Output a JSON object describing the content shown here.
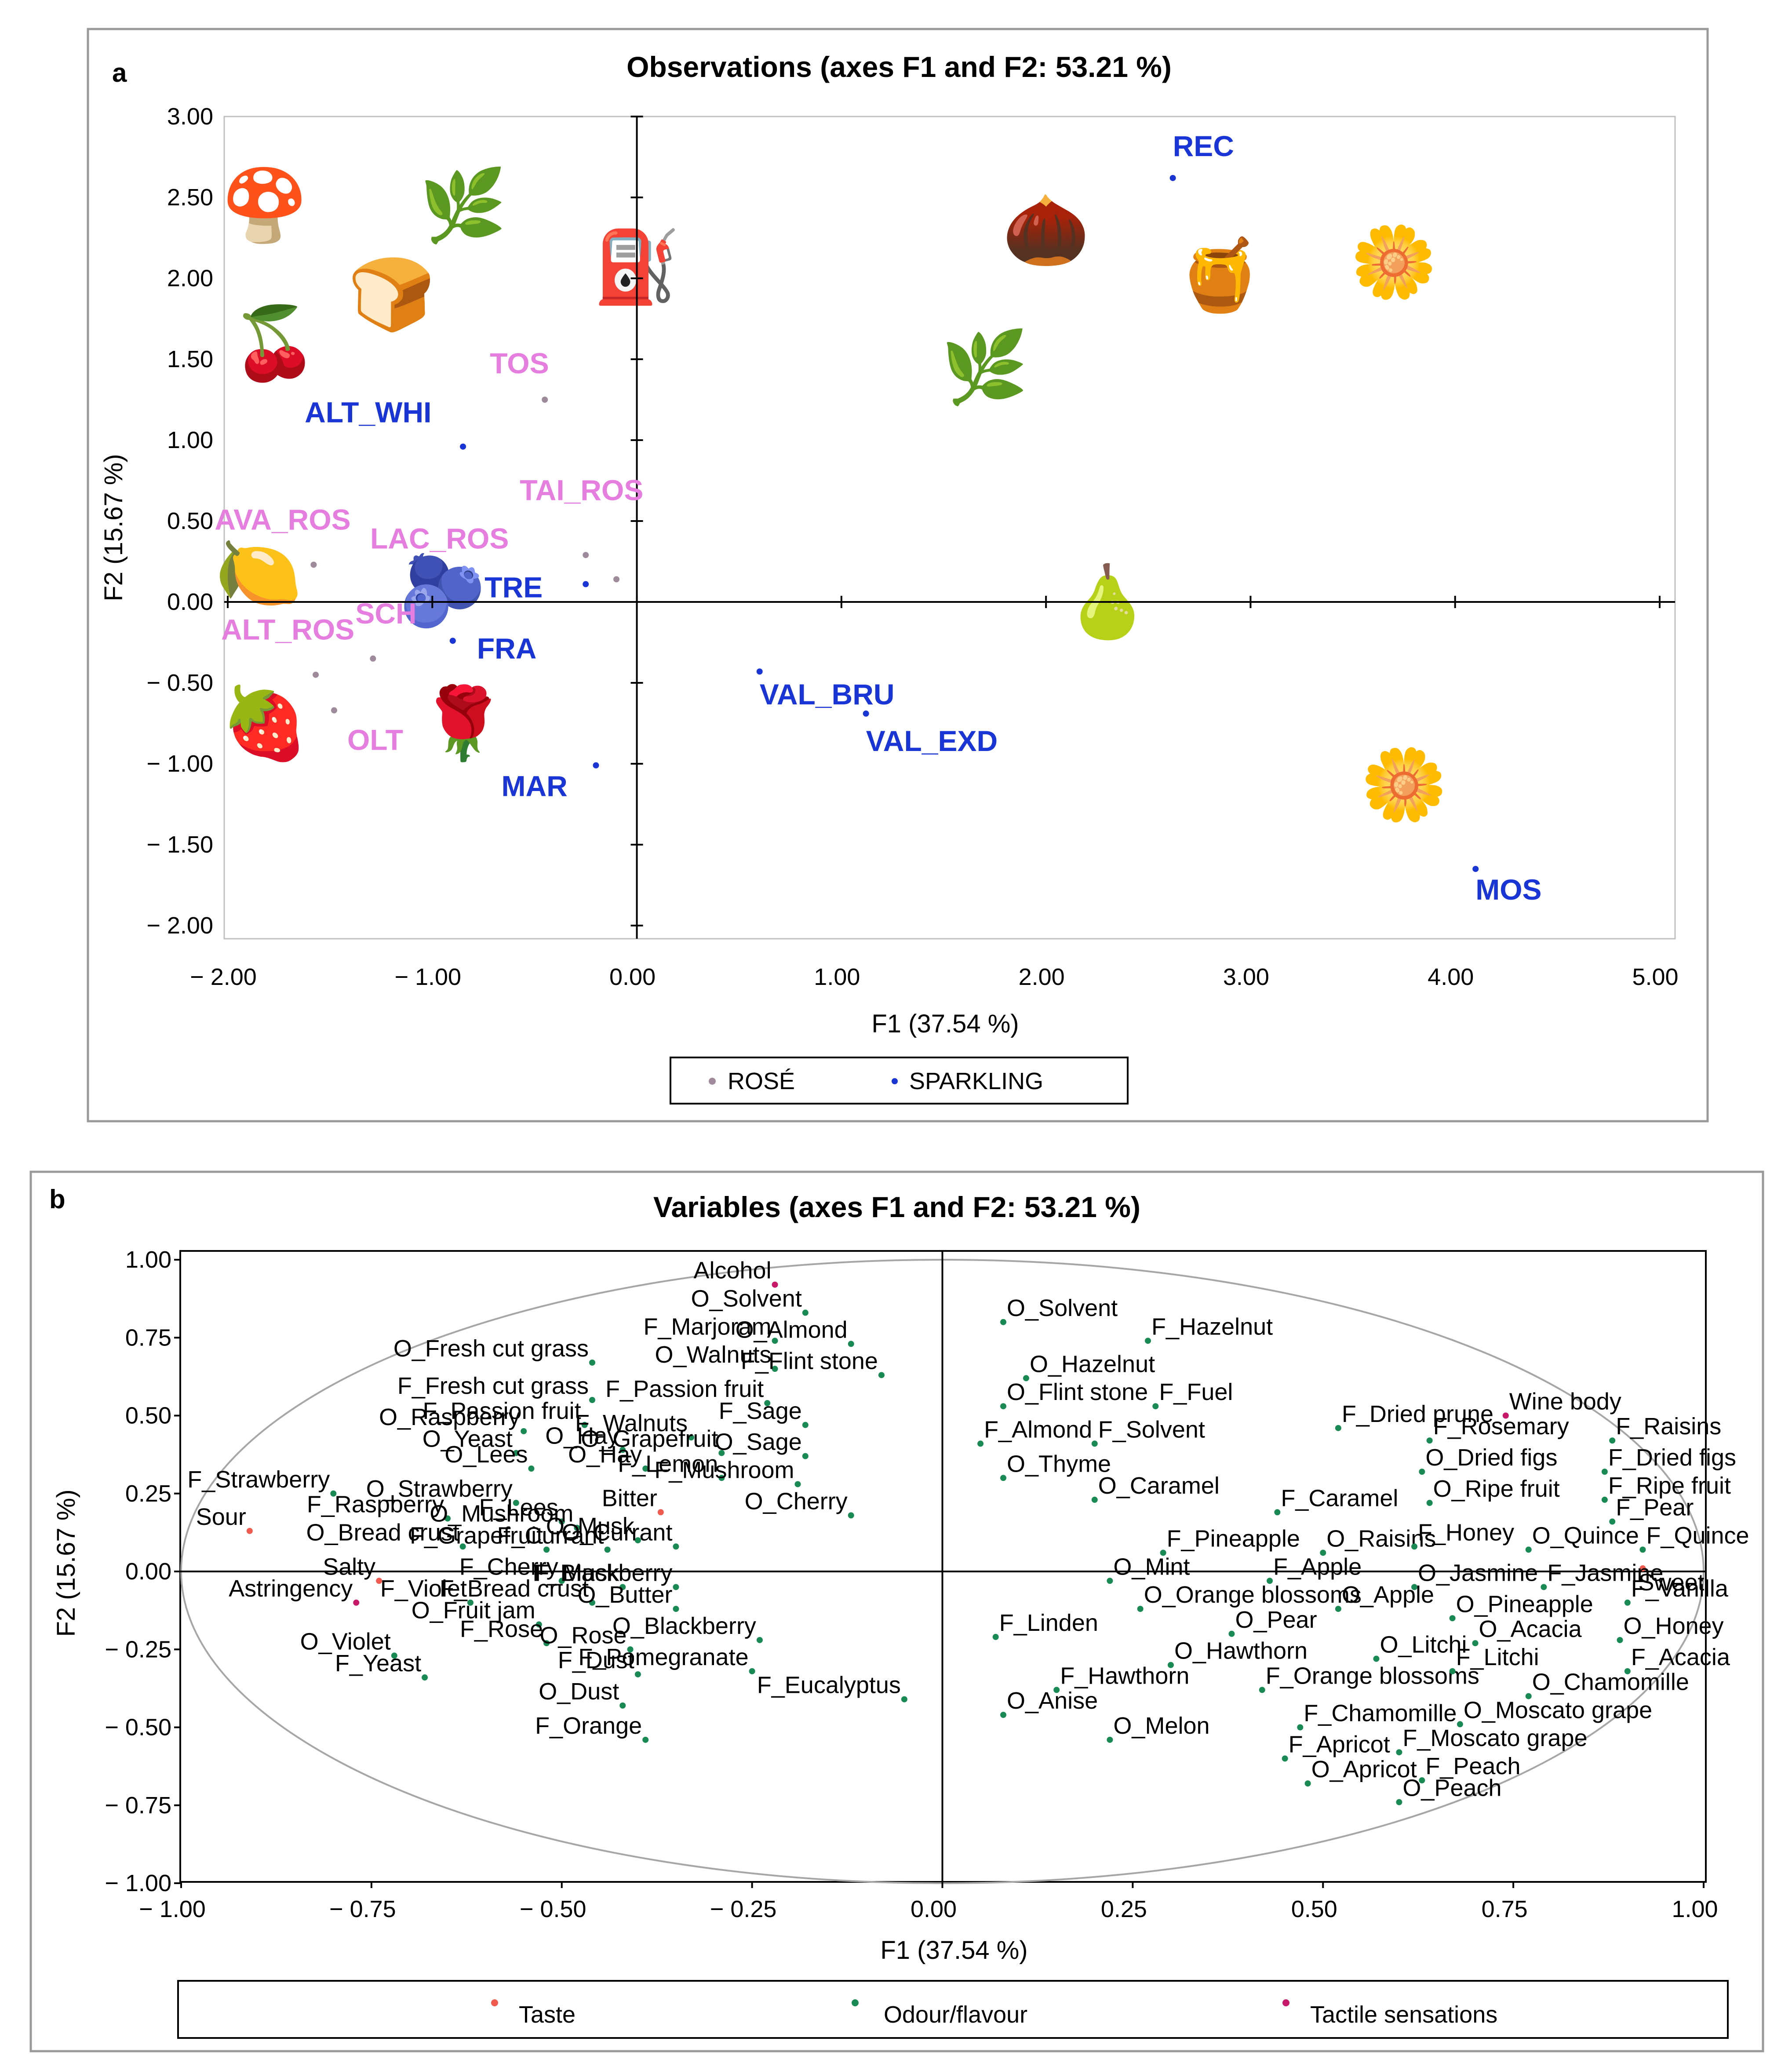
{
  "chart_data": [
    {
      "panel": "a",
      "type": "scatter",
      "title": "Observations (axes F1 and F2: 53.21 %)",
      "xlabel": "F1 (37.54 %)",
      "ylabel": "F2 (15.67 %)",
      "xlim": [
        -2,
        5
      ],
      "ylim": [
        -2,
        3
      ],
      "x_ticks": [
        "− 2.00",
        "− 1.00",
        "0.00",
        "1.00",
        "2.00",
        "3.00",
        "4.00",
        "5.00"
      ],
      "x_tick_values": [
        -2,
        -1,
        0,
        1,
        2,
        3,
        4,
        5
      ],
      "y_ticks": [
        "3.00",
        "2.50",
        "2.00",
        "1.50",
        "1.00",
        "0.50",
        "0.00",
        "− 0.50",
        "− 1.00",
        "− 1.50",
        "− 2.00"
      ],
      "y_tick_values": [
        3,
        2.5,
        2,
        1.5,
        1,
        0.5,
        0,
        -0.5,
        -1,
        -1.5,
        -2
      ],
      "colors": {
        "rose": "#e67ee0",
        "sparkling": "#1a35d6",
        "rose_marker": "#9e8a9a",
        "sparkling_marker": "#1a35d6"
      },
      "legend": [
        {
          "label": "ROSÉ",
          "group": "rose"
        },
        {
          "label": "SPARKLING",
          "group": "sparkling"
        }
      ],
      "series": [
        {
          "name": "ROSÉ",
          "points": [
            {
              "label": "TOS",
              "x": -0.45,
              "y": 1.25
            },
            {
              "label": "TAI_ROS",
              "x": -0.25,
              "y": 0.29
            },
            {
              "label": "AVA_ROS",
              "x": -1.58,
              "y": 0.23
            },
            {
              "label": "LAC_ROS",
              "x": -0.1,
              "y": 0.14
            },
            {
              "label": "ALT_ROS",
              "x": -1.57,
              "y": -0.45
            },
            {
              "label": "SCH",
              "x": -1.29,
              "y": -0.35
            },
            {
              "label": "OLT",
              "x": -1.48,
              "y": -0.67
            }
          ]
        },
        {
          "name": "SPARKLING",
          "points": [
            {
              "label": "REC",
              "x": 2.62,
              "y": 2.62
            },
            {
              "label": "ALT_WHI",
              "x": -0.85,
              "y": 0.96
            },
            {
              "label": "TRE",
              "x": -0.25,
              "y": 0.11
            },
            {
              "label": "FRA",
              "x": -0.9,
              "y": -0.24
            },
            {
              "label": "VAL_BRU",
              "x": 0.6,
              "y": -0.43
            },
            {
              "label": "VAL_EXD",
              "x": 1.12,
              "y": -0.69
            },
            {
              "label": "MAR",
              "x": -0.2,
              "y": -1.01
            },
            {
              "label": "MOS",
              "x": 4.1,
              "y": -1.65
            }
          ]
        }
      ],
      "icons": [
        {
          "name": "mushroom-icon",
          "glyph": "🍄",
          "x": -1.82,
          "y": 2.45
        },
        {
          "name": "leaf-icon",
          "glyph": "🌿",
          "x": -0.85,
          "y": 2.45
        },
        {
          "name": "fuel-pump-icon",
          "glyph": "⛽",
          "x": 0.0,
          "y": 2.07
        },
        {
          "name": "bread-icon",
          "glyph": "🍞",
          "x": -1.2,
          "y": 1.9
        },
        {
          "name": "cherries-icon",
          "glyph": "🍒",
          "x": -1.77,
          "y": 1.6
        },
        {
          "name": "almond-icon",
          "glyph": "🌰",
          "x": 2.0,
          "y": 2.3
        },
        {
          "name": "honey-pot-icon",
          "glyph": "🍯",
          "x": 2.85,
          "y": 2.02
        },
        {
          "name": "vanilla-flower-icon",
          "glyph": "🌼",
          "x": 3.7,
          "y": 2.1
        },
        {
          "name": "herb-leaf-icon",
          "glyph": "🌿",
          "x": 1.7,
          "y": 1.45
        },
        {
          "name": "lemon-icon",
          "glyph": "🍋",
          "x": -1.85,
          "y": 0.18
        },
        {
          "name": "blueberries-icon",
          "glyph": "🫐",
          "x": -0.95,
          "y": 0.07
        },
        {
          "name": "pear-icon",
          "glyph": "🍐",
          "x": 2.3,
          "y": 0.0
        },
        {
          "name": "jam-jar-icon",
          "glyph": "🍓",
          "x": -1.82,
          "y": -0.75
        },
        {
          "name": "rose-icon",
          "glyph": "🌹",
          "x": -0.85,
          "y": -0.75
        },
        {
          "name": "daisy-icon",
          "glyph": "🌼",
          "x": 3.75,
          "y": -1.13
        }
      ]
    },
    {
      "panel": "b",
      "type": "scatter",
      "title": "Variables (axes F1 and F2: 53.21 %)",
      "xlabel": "F1 (37.54 %)",
      "ylabel": "F2 (15.67 %)",
      "xlim": [
        -1,
        1
      ],
      "ylim": [
        -1,
        1
      ],
      "x_ticks": [
        "− 1.00",
        "− 0.75",
        "− 0.50",
        "− 0.25",
        "0.00",
        "0.25",
        "0.50",
        "0.75",
        "1.00"
      ],
      "x_tick_values": [
        -1,
        -0.75,
        -0.5,
        -0.25,
        0,
        0.25,
        0.5,
        0.75,
        1
      ],
      "y_ticks": [
        "1.00",
        "0.75",
        "0.50",
        "0.25",
        "0.00",
        "− 0.25",
        "− 0.50",
        "− 0.75",
        "− 1.00"
      ],
      "y_tick_values": [
        1,
        0.75,
        0.5,
        0.25,
        0,
        -0.25,
        -0.5,
        -0.75,
        -1
      ],
      "colors": {
        "taste": "#f05a4f",
        "odour": "#1a8a55",
        "tactile": "#c8186a",
        "text": "#000000"
      },
      "legend": [
        {
          "label": "Taste",
          "group": "taste"
        },
        {
          "label": "Odour/flavour",
          "group": "odour"
        },
        {
          "label": "Tactile sensations",
          "group": "tactile"
        }
      ],
      "series": [
        {
          "name": "Taste",
          "points": [
            {
              "label": "Sour",
              "x": -0.91,
              "y": 0.13
            },
            {
              "label": "Salty",
              "x": -0.74,
              "y": -0.03
            },
            {
              "label": "Bitter",
              "x": -0.37,
              "y": 0.19
            },
            {
              "label": "Sweet",
              "x": 0.92,
              "y": 0.01
            }
          ]
        },
        {
          "name": "Tactile sensations",
          "points": [
            {
              "label": "Alcohol",
              "x": -0.22,
              "y": 0.92
            },
            {
              "label": "Wine body",
              "x": 0.74,
              "y": 0.5
            },
            {
              "label": "Astringency",
              "x": -0.77,
              "y": -0.1
            }
          ]
        },
        {
          "name": "Odour/flavour",
          "points": [
            {
              "label": "O_Solvent",
              "x": -0.18,
              "y": 0.83
            },
            {
              "label": "F_Marjoram",
              "x": -0.22,
              "y": 0.74
            },
            {
              "label": "O_Almond",
              "x": -0.12,
              "y": 0.73
            },
            {
              "label": "O_Fresh cut grass",
              "x": -0.46,
              "y": 0.67
            },
            {
              "label": "O_Walnuts",
              "x": -0.22,
              "y": 0.65
            },
            {
              "label": "F_Flint stone",
              "x": -0.08,
              "y": 0.63
            },
            {
              "label": "F_Fresh cut grass",
              "x": -0.46,
              "y": 0.55
            },
            {
              "label": "F_Passion fruit",
              "x": -0.23,
              "y": 0.54
            },
            {
              "label": "F_Sage",
              "x": -0.18,
              "y": 0.47
            },
            {
              "label": "O_Raspberry",
              "x": -0.55,
              "y": 0.45
            },
            {
              "label": "F_Passion fruit",
              "x": -0.47,
              "y": 0.47
            },
            {
              "label": "F_Walnuts",
              "x": -0.33,
              "y": 0.43
            },
            {
              "label": "O_Sage",
              "x": -0.18,
              "y": 0.37
            },
            {
              "label": "O_Yeast",
              "x": -0.56,
              "y": 0.38
            },
            {
              "label": "O_Lees",
              "x": -0.54,
              "y": 0.33
            },
            {
              "label": "O_Hay",
              "x": -0.42,
              "y": 0.39
            },
            {
              "label": "O_Hay",
              "x": -0.39,
              "y": 0.33
            },
            {
              "label": "O_Grapefruit",
              "x": -0.29,
              "y": 0.38
            },
            {
              "label": "F_Strawberry",
              "x": -0.8,
              "y": 0.25
            },
            {
              "label": "O_Strawberry",
              "x": -0.56,
              "y": 0.22
            },
            {
              "label": "F_Lemon",
              "x": -0.29,
              "y": 0.3
            },
            {
              "label": "F_Mushroom",
              "x": -0.19,
              "y": 0.28
            },
            {
              "label": "F_Raspberry",
              "x": -0.65,
              "y": 0.17
            },
            {
              "label": "F_Lees",
              "x": -0.5,
              "y": 0.16
            },
            {
              "label": "O_Mushroom",
              "x": -0.48,
              "y": 0.14
            },
            {
              "label": "O_Musk",
              "x": -0.4,
              "y": 0.1
            },
            {
              "label": "O_Cherry",
              "x": -0.12,
              "y": 0.18
            },
            {
              "label": "O_Bread crust",
              "x": -0.63,
              "y": 0.08
            },
            {
              "label": "F_Grapefruit",
              "x": -0.52,
              "y": 0.07
            },
            {
              "label": "F_Currant",
              "x": -0.44,
              "y": 0.07
            },
            {
              "label": "O_Currant",
              "x": -0.35,
              "y": 0.08
            },
            {
              "label": "F_Cherry",
              "x": -0.5,
              "y": -0.03
            },
            {
              "label": "F_Musk",
              "x": -0.42,
              "y": -0.05
            },
            {
              "label": "F_Blackberry",
              "x": -0.35,
              "y": -0.05
            },
            {
              "label": "F_Violet",
              "x": -0.62,
              "y": -0.1
            },
            {
              "label": "F_Bread crust",
              "x": -0.46,
              "y": -0.1
            },
            {
              "label": "O_Butter",
              "x": -0.35,
              "y": -0.12
            },
            {
              "label": "O_Fruit jam",
              "x": -0.53,
              "y": -0.17
            },
            {
              "label": "O_Violet",
              "x": -0.72,
              "y": -0.27
            },
            {
              "label": "F_Rose",
              "x": -0.52,
              "y": -0.23
            },
            {
              "label": "O_Rose",
              "x": -0.41,
              "y": -0.25
            },
            {
              "label": "O_Blackberry",
              "x": -0.24,
              "y": -0.22
            },
            {
              "label": "F_Yeast",
              "x": -0.68,
              "y": -0.34
            },
            {
              "label": "F_Dust",
              "x": -0.4,
              "y": -0.33
            },
            {
              "label": "F_Pomegranate",
              "x": -0.25,
              "y": -0.32
            },
            {
              "label": "O_Dust",
              "x": -0.42,
              "y": -0.43
            },
            {
              "label": "F_Eucalyptus",
              "x": -0.05,
              "y": -0.41
            },
            {
              "label": "F_Orange",
              "x": -0.39,
              "y": -0.54
            },
            {
              "label": "O_Solvent",
              "x": 0.08,
              "y": 0.8
            },
            {
              "label": "F_Hazelnut",
              "x": 0.27,
              "y": 0.74
            },
            {
              "label": "O_Hazelnut",
              "x": 0.11,
              "y": 0.62
            },
            {
              "label": "F_Fuel",
              "x": 0.28,
              "y": 0.53
            },
            {
              "label": "O_Flint stone",
              "x": 0.08,
              "y": 0.53
            },
            {
              "label": "F_Dried prune",
              "x": 0.52,
              "y": 0.46
            },
            {
              "label": "F_Almond",
              "x": 0.05,
              "y": 0.41
            },
            {
              "label": "F_Solvent",
              "x": 0.2,
              "y": 0.41
            },
            {
              "label": "O_Thyme",
              "x": 0.08,
              "y": 0.3
            },
            {
              "label": "O_Caramel",
              "x": 0.2,
              "y": 0.23
            },
            {
              "label": "F_Caramel",
              "x": 0.44,
              "y": 0.19
            },
            {
              "label": "F_Pineapple",
              "x": 0.29,
              "y": 0.06
            },
            {
              "label": "O_Raisins",
              "x": 0.5,
              "y": 0.06
            },
            {
              "label": "O_Mint",
              "x": 0.22,
              "y": -0.03
            },
            {
              "label": "F_Apple",
              "x": 0.43,
              "y": -0.03
            },
            {
              "label": "O_Orange blossoms",
              "x": 0.26,
              "y": -0.12
            },
            {
              "label": "O_Pear",
              "x": 0.38,
              "y": -0.2
            },
            {
              "label": "O_Apple",
              "x": 0.52,
              "y": -0.12
            },
            {
              "label": "F_Linden",
              "x": 0.07,
              "y": -0.21
            },
            {
              "label": "O_Hawthorn",
              "x": 0.3,
              "y": -0.3
            },
            {
              "label": "O_Litchi",
              "x": 0.57,
              "y": -0.28
            },
            {
              "label": "F_Hawthorn",
              "x": 0.15,
              "y": -0.38
            },
            {
              "label": "F_Orange blossoms",
              "x": 0.42,
              "y": -0.38
            },
            {
              "label": "O_Anise",
              "x": 0.08,
              "y": -0.46
            },
            {
              "label": "O_Melon",
              "x": 0.22,
              "y": -0.54
            },
            {
              "label": "F_Chamomille",
              "x": 0.47,
              "y": -0.5
            },
            {
              "label": "F_Apricot",
              "x": 0.45,
              "y": -0.6
            },
            {
              "label": "O_Apricot",
              "x": 0.48,
              "y": -0.68
            },
            {
              "label": "F_Rosemary",
              "x": 0.64,
              "y": 0.42
            },
            {
              "label": "O_Dried figs",
              "x": 0.63,
              "y": 0.32
            },
            {
              "label": "O_Ripe fruit",
              "x": 0.64,
              "y": 0.22
            },
            {
              "label": "F_Honey",
              "x": 0.62,
              "y": 0.08
            },
            {
              "label": "O_Quince",
              "x": 0.77,
              "y": 0.07
            },
            {
              "label": "O_Jasmine",
              "x": 0.62,
              "y": -0.05
            },
            {
              "label": "F_Jasmine",
              "x": 0.79,
              "y": -0.05
            },
            {
              "label": "O_Pineapple",
              "x": 0.67,
              "y": -0.15
            },
            {
              "label": "O_Acacia",
              "x": 0.7,
              "y": -0.23
            },
            {
              "label": "F_Litchi",
              "x": 0.67,
              "y": -0.32
            },
            {
              "label": "O_Chamomille",
              "x": 0.77,
              "y": -0.4
            },
            {
              "label": "O_Moscato grape",
              "x": 0.68,
              "y": -0.49
            },
            {
              "label": "F_Moscato grape",
              "x": 0.6,
              "y": -0.58
            },
            {
              "label": "F_Peach",
              "x": 0.63,
              "y": -0.67
            },
            {
              "label": "O_Peach",
              "x": 0.6,
              "y": -0.74
            },
            {
              "label": "F_Raisins",
              "x": 0.88,
              "y": 0.42
            },
            {
              "label": "F_Dried figs",
              "x": 0.87,
              "y": 0.32
            },
            {
              "label": "F_Ripe fruit",
              "x": 0.87,
              "y": 0.23
            },
            {
              "label": "F_Pear",
              "x": 0.88,
              "y": 0.16
            },
            {
              "label": "F_Quince",
              "x": 0.92,
              "y": 0.07
            },
            {
              "label": "F_Vanilla",
              "x": 0.9,
              "y": -0.1
            },
            {
              "label": "O_Honey",
              "x": 0.89,
              "y": -0.22
            },
            {
              "label": "F_Acacia",
              "x": 0.9,
              "y": -0.32
            }
          ]
        }
      ]
    }
  ]
}
